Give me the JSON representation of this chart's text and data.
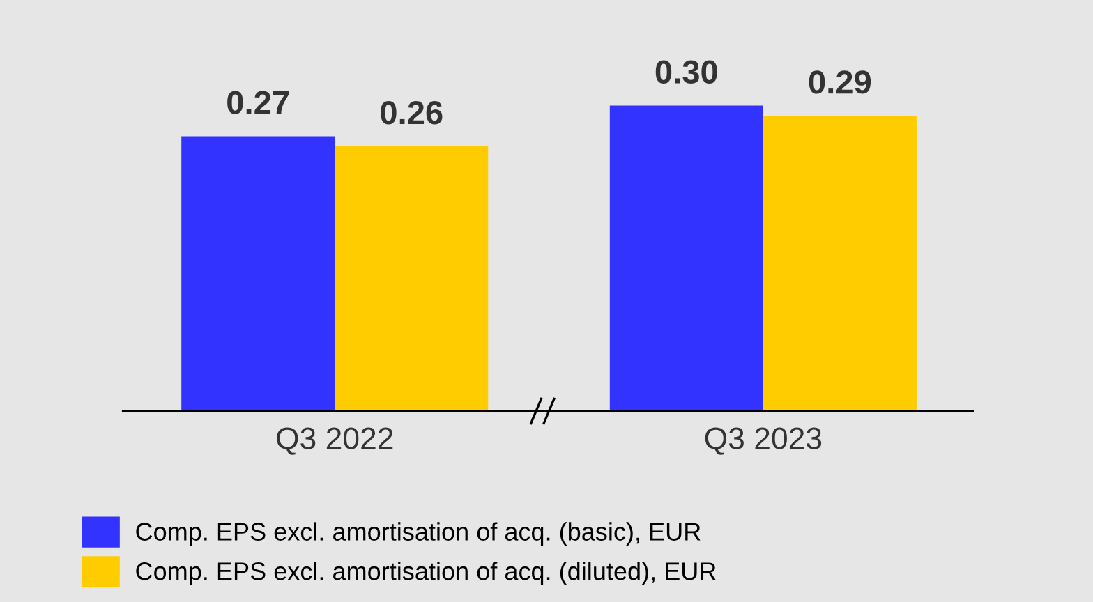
{
  "chart_data": {
    "type": "bar",
    "categories": [
      "Q3 2022",
      "Q3 2023"
    ],
    "series": [
      {
        "name": "Comp. EPS excl. amortisation of acq. (basic), EUR",
        "color": "#3333ff",
        "values": [
          0.27,
          0.3
        ],
        "value_labels": [
          "0.27",
          "0.30"
        ]
      },
      {
        "name": "Comp. EPS excl. amortisation of acq. (diluted), EUR",
        "color": "#ffcc00",
        "values": [
          0.26,
          0.29
        ],
        "value_labels": [
          "0.26",
          "0.29"
        ]
      }
    ],
    "legend": "bottom",
    "grid": false
  }
}
